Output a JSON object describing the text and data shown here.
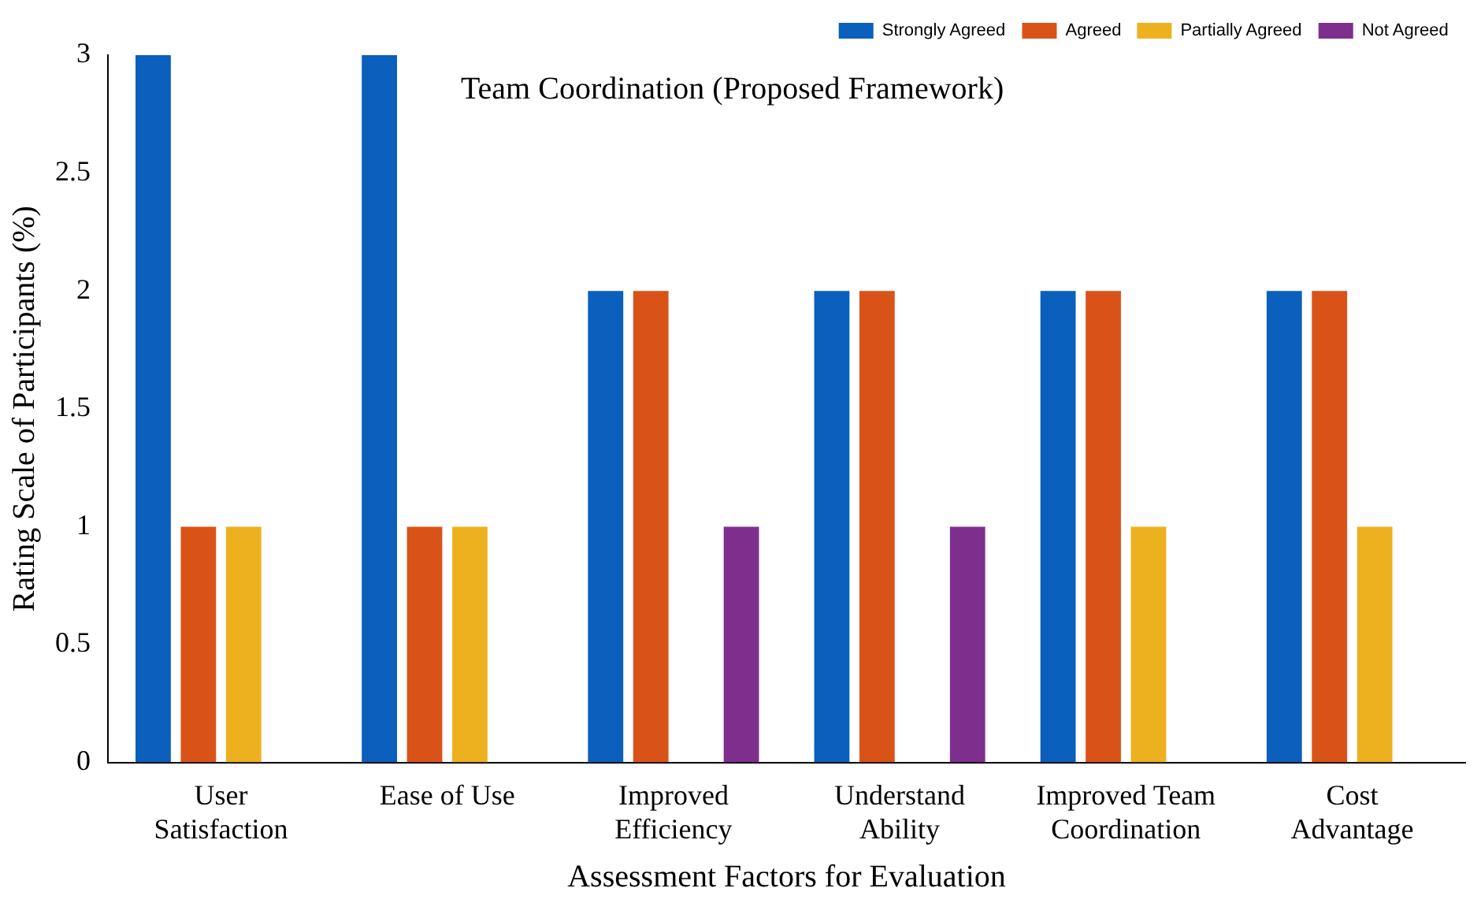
{
  "chart_data": {
    "type": "bar",
    "title": "Team Coordination (Proposed Framework)",
    "xlabel": "Assessment Factors for Evaluation",
    "ylabel": "Rating Scale of Participants (%)",
    "categories": [
      "User Satisfaction",
      "Ease of Use",
      "Improved Efficiency",
      "Understand Ability",
      "Improved Team Coordination",
      "Cost Advantage"
    ],
    "series": [
      {
        "name": "Strongly Agreed",
        "color": "#0b5fbd",
        "values": [
          3,
          3,
          2,
          2,
          2,
          2
        ]
      },
      {
        "name": "Agreed",
        "color": "#d95319",
        "values": [
          1,
          1,
          2,
          2,
          2,
          2
        ]
      },
      {
        "name": "Partially Agreed",
        "color": "#edb120",
        "values": [
          1,
          1,
          0,
          0,
          1,
          1
        ]
      },
      {
        "name": "Not Agreed",
        "color": "#7e2f8e",
        "values": [
          0,
          0,
          1,
          1,
          0,
          0
        ]
      }
    ],
    "ylim": [
      0,
      3
    ],
    "yticks": [
      0,
      0.5,
      1,
      1.5,
      2,
      2.5,
      3
    ],
    "grid": false,
    "legend": "top right"
  }
}
